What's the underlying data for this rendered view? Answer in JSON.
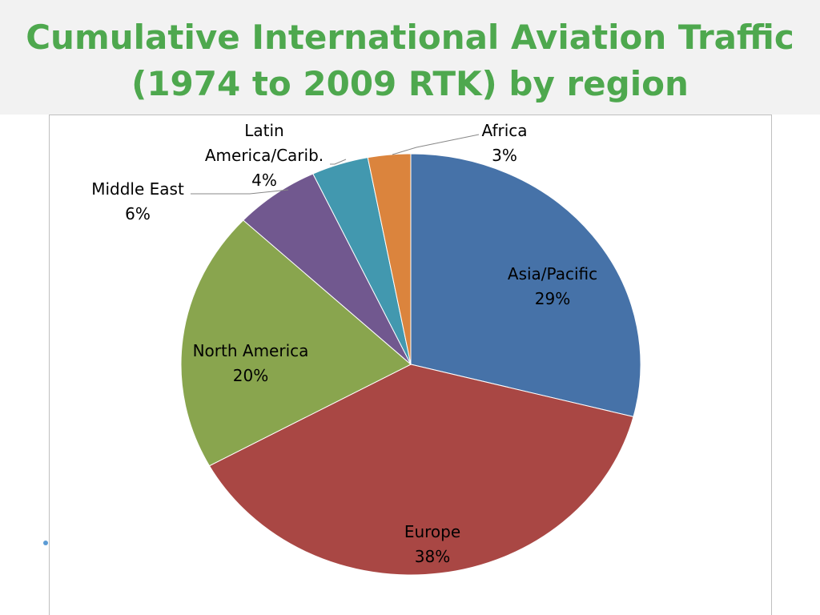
{
  "chart_data": {
    "type": "pie",
    "title": "Cumulative International Aviation Traffic (1974 to 2009 RTK) by region",
    "categories": [
      "Asia/Pacific",
      "Europe",
      "North America",
      "Middle East",
      "Latin America/Carib.",
      "Africa"
    ],
    "values": [
      29,
      38,
      20,
      6,
      4,
      3
    ],
    "value_labels": [
      "29%",
      "38%",
      "20%",
      "6%",
      "4%",
      "3%"
    ],
    "colors": [
      "#4672a8",
      "#a94744",
      "#89a54e",
      "#71588f",
      "#4298af",
      "#db843d"
    ]
  }
}
